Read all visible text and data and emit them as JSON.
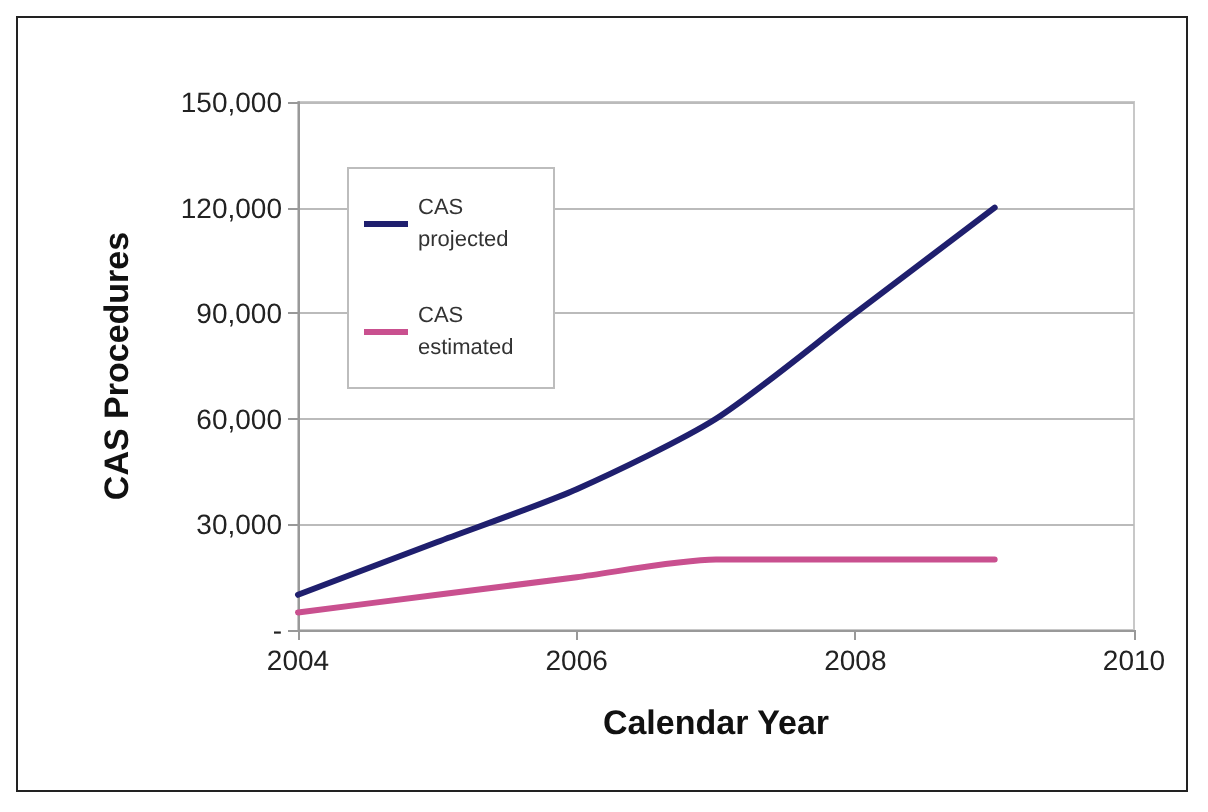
{
  "chart_data": {
    "type": "line",
    "xlabel": "Calendar Year",
    "ylabel": "CAS Procedures",
    "x": [
      2004,
      2005,
      2006,
      2007,
      2008,
      2009
    ],
    "series": [
      {
        "name": "CAS projected",
        "color": "#1f1f6e",
        "values": [
          10000,
          25000,
          40000,
          60000,
          90000,
          120000
        ]
      },
      {
        "name": "CAS estimated",
        "color": "#c9508f",
        "values": [
          5000,
          10000,
          15000,
          20000,
          20000,
          20000
        ]
      }
    ],
    "xlim": [
      2004,
      2010
    ],
    "xticks": [
      2004,
      2006,
      2008,
      2010
    ],
    "ylim": [
      0,
      150000
    ],
    "yticks": [
      {
        "value": 0,
        "label": "-"
      },
      {
        "value": 30000,
        "label": "30,000"
      },
      {
        "value": 60000,
        "label": "60,000"
      },
      {
        "value": 90000,
        "label": "90,000"
      },
      {
        "value": 120000,
        "label": "120,000"
      },
      {
        "value": 150000,
        "label": "150,000"
      }
    ],
    "grid": "y",
    "legend": "top left",
    "marker": "none",
    "line_style": "solid"
  }
}
